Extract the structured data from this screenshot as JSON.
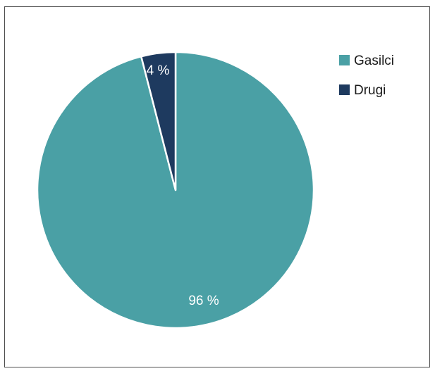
{
  "chart_data": {
    "type": "pie",
    "categories": [
      "Gasilci",
      "Drugi"
    ],
    "values": [
      96,
      4
    ],
    "labels": [
      "96 %",
      "4 %"
    ],
    "colors": [
      "#4aa0a5",
      "#1e3a5f"
    ],
    "slice_border_color": "#ffffff",
    "legend": {
      "placement": "top-right",
      "entries": [
        "Gasilci",
        "Drugi"
      ]
    },
    "start_angle_deg": 0,
    "direction": "clockwise"
  }
}
